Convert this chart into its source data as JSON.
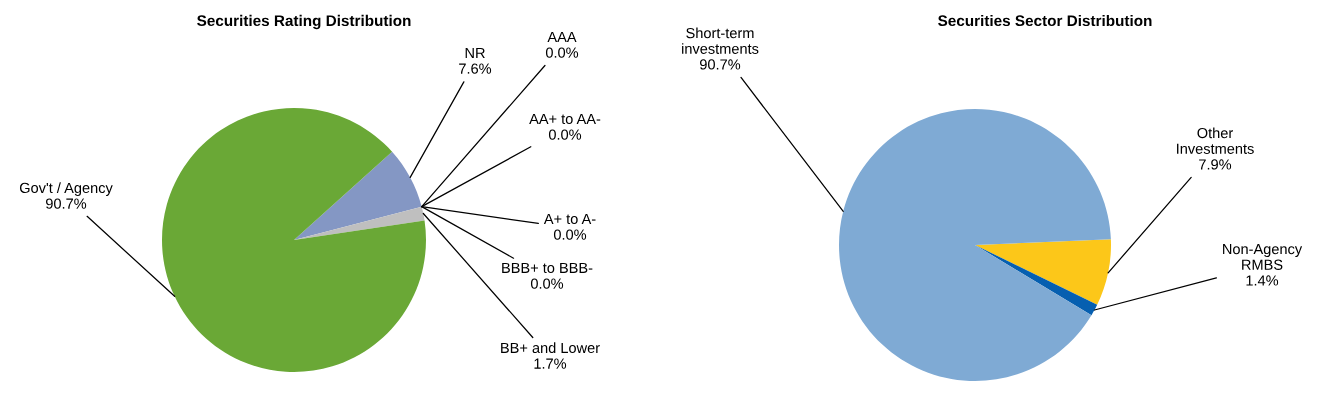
{
  "chart_data": [
    {
      "type": "pie",
      "title": "Securities Rating Distribution",
      "categories": [
        "NR",
        "AAA",
        "AA+ to AA-",
        "A+ to A-",
        "BBB+ to BBB-",
        "BB+ and Lower",
        "Gov't / Agency"
      ],
      "values": [
        7.6,
        0.0,
        0.0,
        0.0,
        0.0,
        1.7,
        90.7
      ],
      "colors": [
        "#8497c4",
        "#4f81bd",
        "#c0504d",
        "#9bbb59",
        "#8064a2",
        "#bfbfbf",
        "#6aa836"
      ],
      "value_labels": [
        "7.6%",
        "0.0%",
        "0.0%",
        "0.0%",
        "0.0%",
        "1.7%",
        "90.7%"
      ]
    },
    {
      "type": "pie",
      "title": "Securities Sector Distribution",
      "categories": [
        "Other Investments",
        "Non-Agency RMBS",
        "Short-term investments"
      ],
      "values": [
        7.9,
        1.4,
        90.7
      ],
      "colors": [
        "#fcc719",
        "#065fb0",
        "#7faad4"
      ],
      "value_labels": [
        "7.9%",
        "1.4%",
        "90.7%"
      ]
    }
  ]
}
